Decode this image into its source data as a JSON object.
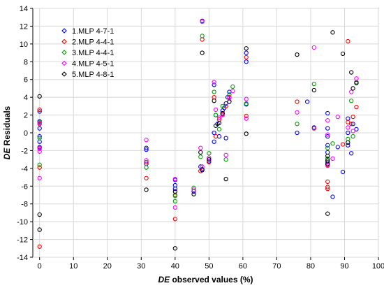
{
  "chart_data": {
    "type": "scatter",
    "xlabel_italic": "DE",
    "xlabel_rest": " observed values (%)",
    "ylabel_italic": "DE",
    "ylabel_rest": " Residuals",
    "xlim": [
      -2,
      100
    ],
    "ylim": [
      -14,
      14
    ],
    "xticks": [
      "0",
      "10",
      "20",
      "30",
      "40",
      "50",
      "60",
      "70",
      "80",
      "90",
      "100"
    ],
    "yticks": [
      "-14",
      "-12",
      "-10",
      "-8",
      "-6",
      "-4",
      "-2",
      "0",
      "2",
      "4",
      "6",
      "8",
      "10",
      "12",
      "14"
    ],
    "legend_position": "top-left",
    "series": [
      {
        "name": "1.MLP 4-7-1",
        "color": "#0000ff",
        "marker": "circle",
        "points": [
          [
            0,
            2.4
          ],
          [
            0,
            1.3
          ],
          [
            0,
            0.5
          ],
          [
            0,
            -0.4
          ],
          [
            0,
            -1.0
          ],
          [
            0,
            -1.6
          ],
          [
            31.5,
            -1.7
          ],
          [
            31.5,
            -1.9
          ],
          [
            31.5,
            -3.5
          ],
          [
            40,
            -5.3
          ],
          [
            40,
            -5.9
          ],
          [
            40,
            -6.3
          ],
          [
            45.5,
            -6.6
          ],
          [
            47.5,
            -3.8
          ],
          [
            48,
            12.6
          ],
          [
            48,
            -4.1
          ],
          [
            50,
            -3.2
          ],
          [
            51.5,
            5.4
          ],
          [
            51.5,
            0
          ],
          [
            51.5,
            -1.0
          ],
          [
            52,
            2.0
          ],
          [
            52.5,
            1.0
          ],
          [
            53,
            -0.4
          ],
          [
            54,
            2.5
          ],
          [
            54.5,
            2.8
          ],
          [
            55,
            3.3
          ],
          [
            55,
            -0.6
          ],
          [
            55.5,
            4.0
          ],
          [
            56,
            4.6
          ],
          [
            61,
            8.0
          ],
          [
            61,
            9.0
          ],
          [
            61,
            3.2
          ],
          [
            76,
            0
          ],
          [
            79,
            3.5
          ],
          [
            81,
            0.6
          ],
          [
            85,
            2.2
          ],
          [
            85,
            0.5
          ],
          [
            85,
            -0.4
          ],
          [
            85,
            -1.4
          ],
          [
            85,
            -2.2
          ],
          [
            85,
            -3.3
          ],
          [
            86.5,
            -7.2
          ],
          [
            88,
            -1.6
          ],
          [
            89.5,
            -4.4
          ],
          [
            91,
            1.6
          ],
          [
            91,
            0
          ],
          [
            91,
            -1.4
          ],
          [
            92,
            -2.3
          ],
          [
            92.5,
            1.0
          ],
          [
            93.5,
            0.4
          ]
        ]
      },
      {
        "name": "2.MLP 4-4-1",
        "color": "#ff0000",
        "marker": "circle",
        "points": [
          [
            0,
            2.6
          ],
          [
            0,
            1.0
          ],
          [
            0,
            -1.7
          ],
          [
            0,
            -3.9
          ],
          [
            0,
            -12.8
          ],
          [
            31.5,
            -3.3
          ],
          [
            31.5,
            -5.1
          ],
          [
            40,
            -7.0
          ],
          [
            40,
            -9.7
          ],
          [
            47.5,
            -4.3
          ],
          [
            48,
            10.5
          ],
          [
            50,
            -3.3
          ],
          [
            51.5,
            4.0
          ],
          [
            52,
            -0.4
          ],
          [
            53,
            1.5
          ],
          [
            54,
            2.1
          ],
          [
            55,
            3.0
          ],
          [
            56,
            4.0
          ],
          [
            61,
            8.5
          ],
          [
            61,
            1.9
          ],
          [
            76,
            3.5
          ],
          [
            81,
            0.5
          ],
          [
            85,
            -5.5
          ],
          [
            85,
            -6.1
          ],
          [
            85,
            -6.3
          ],
          [
            85,
            -3.6
          ],
          [
            89.5,
            -1.3
          ],
          [
            91,
            10.3
          ],
          [
            91,
            1.2
          ],
          [
            92,
            1.0
          ],
          [
            92.5,
            1.8
          ],
          [
            93.5,
            2.9
          ]
        ]
      },
      {
        "name": "3.MLP 4-4-1",
        "color": "#00a000",
        "marker": "circle",
        "points": [
          [
            0,
            1.2
          ],
          [
            0,
            -3.6
          ],
          [
            0,
            -0.6
          ],
          [
            31.5,
            -3.9
          ],
          [
            40,
            -7.1
          ],
          [
            40,
            -7.7
          ],
          [
            45.5,
            -6.2
          ],
          [
            47.5,
            -2.7
          ],
          [
            48,
            10.9
          ],
          [
            50,
            -2.3
          ],
          [
            51.5,
            4.6
          ],
          [
            52,
            2.0
          ],
          [
            53,
            0.4
          ],
          [
            54,
            3.0
          ],
          [
            55,
            -3.0
          ],
          [
            56,
            4.3
          ],
          [
            57,
            5.2
          ],
          [
            61,
            3.3
          ],
          [
            76,
            1.0
          ],
          [
            81,
            5.5
          ],
          [
            85,
            -2.9
          ],
          [
            85,
            -1.7
          ],
          [
            86.5,
            -1.2
          ],
          [
            91,
            -0.7
          ],
          [
            92,
            3.6
          ],
          [
            92.5,
            -0.4
          ],
          [
            93.5,
            5.7
          ]
        ]
      },
      {
        "name": "4.MLP 4-5-1",
        "color": "#ff00ff",
        "marker": "circle",
        "points": [
          [
            0,
            1.1
          ],
          [
            0,
            -1.8
          ],
          [
            0,
            -2.1
          ],
          [
            0,
            -5.1
          ],
          [
            31.5,
            -0.8
          ],
          [
            31.5,
            -3.1
          ],
          [
            40,
            -5.2
          ],
          [
            40,
            -8.4
          ],
          [
            45.5,
            -6.4
          ],
          [
            47.5,
            -1.7
          ],
          [
            48,
            12.5
          ],
          [
            48,
            -3.8
          ],
          [
            50,
            -2.8
          ],
          [
            51.5,
            5.7
          ],
          [
            52,
            2.6
          ],
          [
            53,
            1.7
          ],
          [
            54,
            2.0
          ],
          [
            55,
            -2.5
          ],
          [
            56,
            3.9
          ],
          [
            57,
            4.7
          ],
          [
            61,
            3.8
          ],
          [
            61,
            1.6
          ],
          [
            76,
            2.3
          ],
          [
            81,
            9.6
          ],
          [
            85,
            1.4
          ],
          [
            85,
            -0.2
          ],
          [
            85,
            -3.7
          ],
          [
            86.5,
            -2.9
          ],
          [
            88,
            1.8
          ],
          [
            91,
            0.6
          ],
          [
            92,
            4.6
          ],
          [
            92.5,
            0.2
          ],
          [
            93.5,
            6.1
          ]
        ]
      },
      {
        "name": "5.MLP 4-8-1",
        "color": "#000000",
        "marker": "circle",
        "points": [
          [
            0,
            4.1
          ],
          [
            0,
            -9.2
          ],
          [
            0,
            -10.9
          ],
          [
            31.5,
            -6.4
          ],
          [
            40,
            -6.6
          ],
          [
            40,
            -13.0
          ],
          [
            45.5,
            -6.9
          ],
          [
            47.5,
            -2.2
          ],
          [
            48,
            9.0
          ],
          [
            48,
            -4.2
          ],
          [
            50,
            -3.0
          ],
          [
            51.5,
            3.6
          ],
          [
            52,
            0.8
          ],
          [
            53,
            1.1
          ],
          [
            54,
            2.2
          ],
          [
            55,
            -5.2
          ],
          [
            56,
            3.5
          ],
          [
            61,
            9.5
          ],
          [
            61,
            -0.1
          ],
          [
            76,
            8.8
          ],
          [
            81,
            4.8
          ],
          [
            85,
            -9.1
          ],
          [
            85,
            -2.6
          ],
          [
            85,
            -3.1
          ],
          [
            85,
            -3.5
          ],
          [
            86.5,
            11.3
          ],
          [
            89.5,
            8.9
          ],
          [
            91,
            -1.1
          ],
          [
            92,
            6.8
          ],
          [
            92.5,
            5.0
          ],
          [
            93.5,
            5.6
          ]
        ]
      }
    ]
  }
}
